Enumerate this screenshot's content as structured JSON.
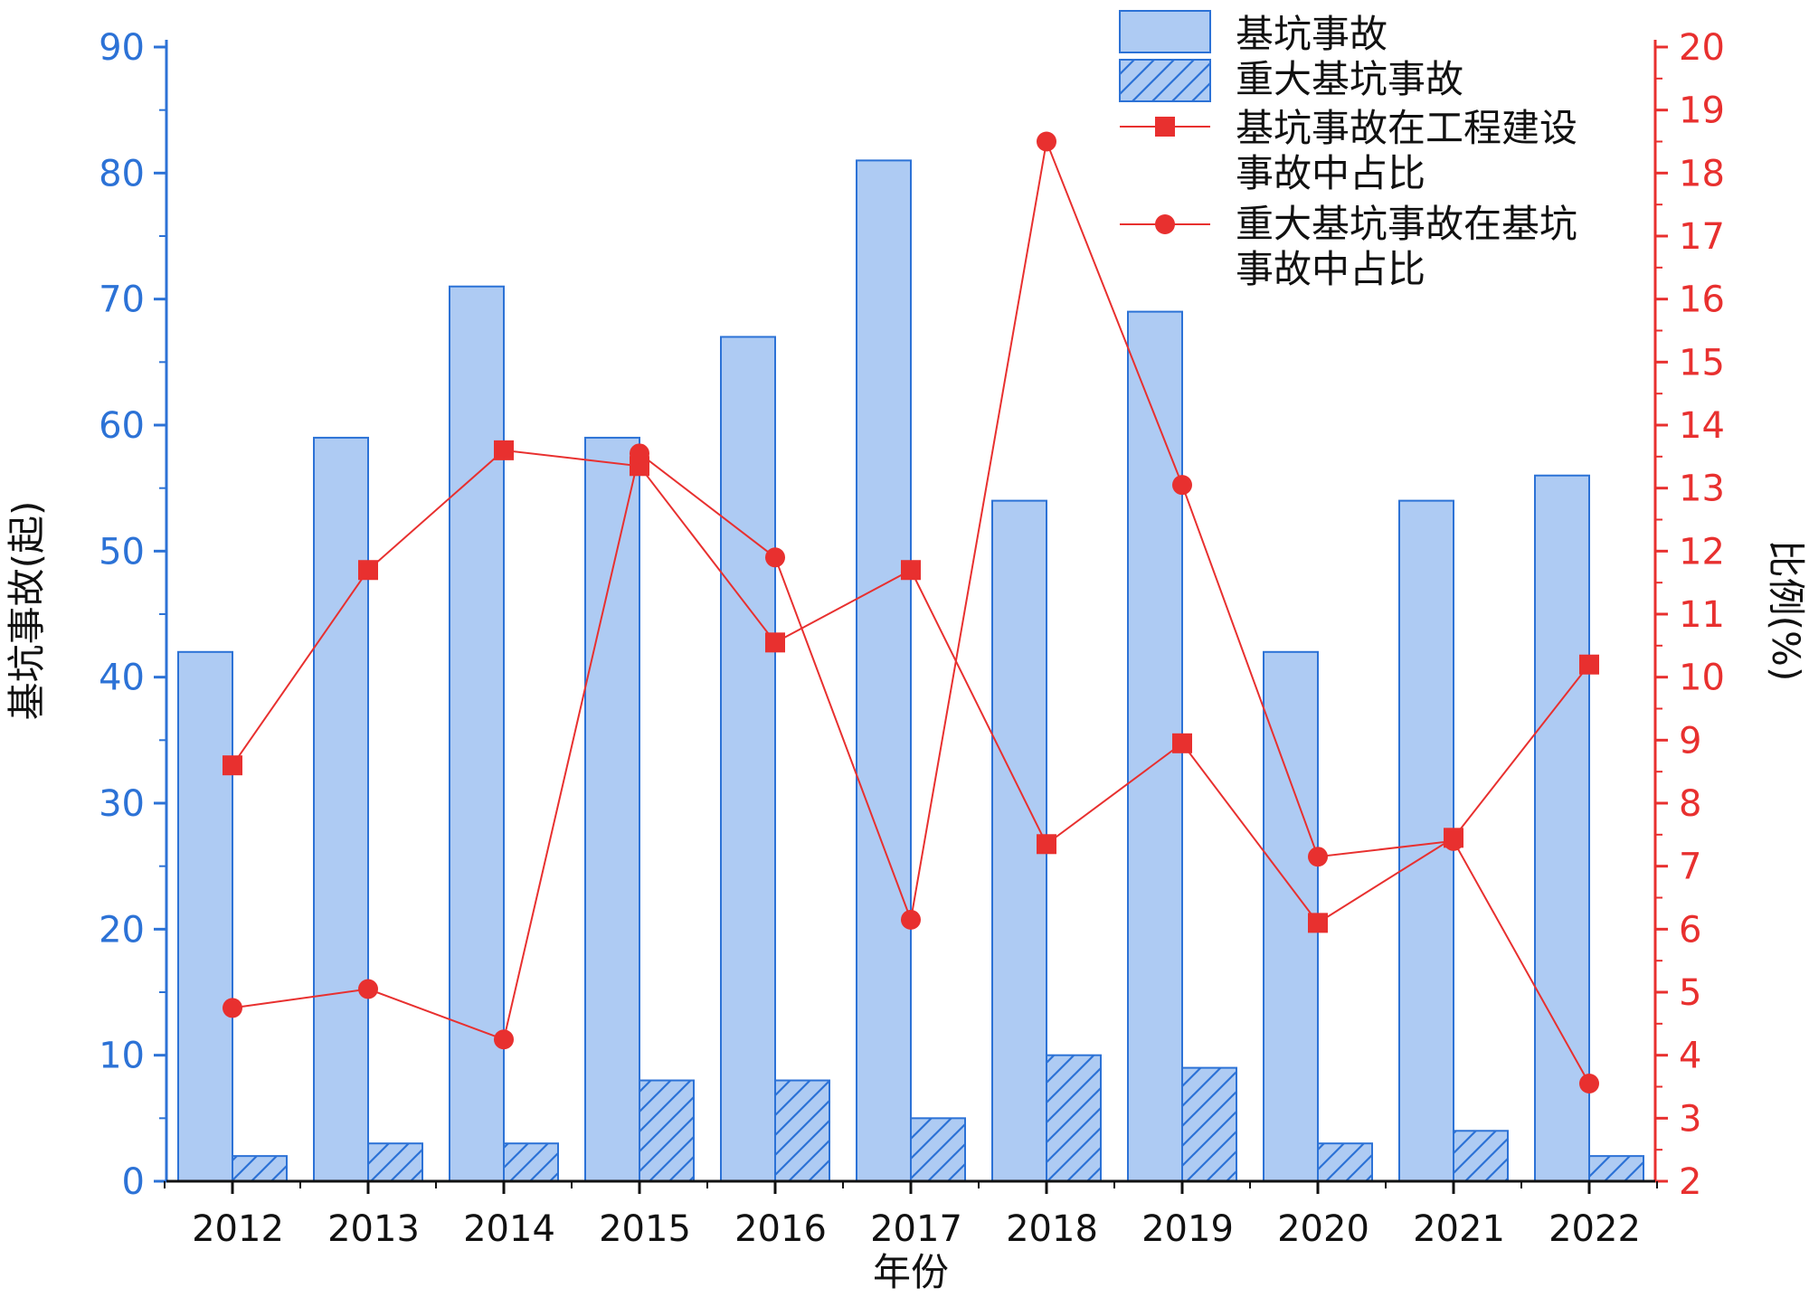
{
  "chart_data": {
    "type": "bar",
    "categories": [
      "2012",
      "2013",
      "2014",
      "2015",
      "2016",
      "2017",
      "2018",
      "2019",
      "2020",
      "2021",
      "2022"
    ],
    "xlabel": "年份",
    "ylabel_left": "基坑事故(起)",
    "ylabel_right": "比例(%)",
    "ylim_left": [
      0,
      90
    ],
    "ylim_right": [
      2,
      20
    ],
    "yticks_left": [
      "0",
      "10",
      "20",
      "30",
      "40",
      "50",
      "60",
      "70",
      "80",
      "90"
    ],
    "yticks_right": [
      "2",
      "3",
      "4",
      "5",
      "6",
      "7",
      "8",
      "9",
      "10",
      "11",
      "12",
      "13",
      "14",
      "15",
      "16",
      "17",
      "18",
      "19",
      "20"
    ],
    "series": [
      {
        "name": "基坑事故",
        "kind": "bar",
        "axis": "left",
        "values": [
          42,
          59,
          71,
          59,
          67,
          81,
          54,
          69,
          42,
          54,
          56
        ]
      },
      {
        "name": "重大基坑事故",
        "kind": "bar-hatched",
        "axis": "left",
        "values": [
          2,
          3,
          3,
          8,
          8,
          5,
          10,
          9,
          3,
          4,
          2
        ]
      },
      {
        "name": "基坑事故在工程建设事故中占比",
        "kind": "line-square",
        "axis": "right",
        "values": [
          8.6,
          11.7,
          13.6,
          13.35,
          10.55,
          11.7,
          7.35,
          8.95,
          6.1,
          7.45,
          10.2
        ]
      },
      {
        "name": "重大基坑事故在基坑事故中占比",
        "kind": "line-circle",
        "axis": "right",
        "values": [
          4.75,
          5.05,
          4.25,
          13.55,
          11.9,
          6.15,
          18.5,
          13.05,
          7.15,
          7.4,
          3.55
        ]
      }
    ],
    "legend": {
      "position": "top-right",
      "entries": [
        {
          "label": "基坑事故"
        },
        {
          "label": "重大基坑事故"
        },
        {
          "label_lines": [
            "基坑事故在工程建设",
            "事故中占比"
          ]
        },
        {
          "label_lines": [
            "重大基坑事故在基坑",
            "事故中占比"
          ]
        }
      ]
    },
    "colors": {
      "bar_fill": "#aecbf3",
      "bar_stroke": "#2c72d6",
      "line": "#e8302f",
      "left_axis": "#2c72d6",
      "right_axis": "#e8302f",
      "text": "#111111"
    }
  }
}
